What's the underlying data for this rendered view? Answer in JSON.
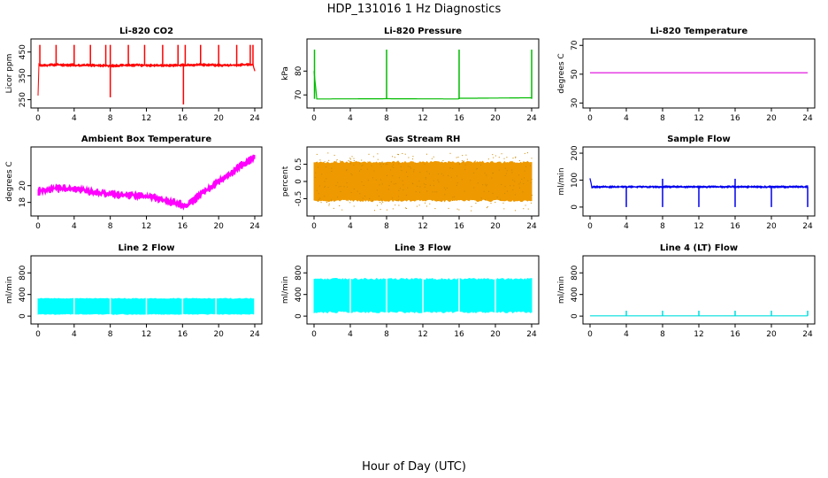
{
  "figure": {
    "title": "HDP_131016  1 Hz Diagnostics",
    "xlabel": "Hour of Day (UTC)"
  },
  "chart_data": [
    {
      "type": "line",
      "title": "Li-820 CO2",
      "ylabel": "Licor ppm",
      "xlim": [
        0,
        24
      ],
      "ylim": [
        230,
        490
      ],
      "yticks": [
        250,
        350,
        450
      ],
      "xticks": [
        0,
        4,
        8,
        12,
        16,
        20,
        24
      ],
      "color": "#ff0000",
      "series": [
        {
          "baseline": 395,
          "noise": 6,
          "x": [
            0,
            0.1,
            0.3,
            2,
            4,
            6,
            8,
            10,
            12,
            14,
            16,
            18,
            20,
            22,
            23.8,
            24
          ],
          "y": [
            270,
            395,
            393,
            396,
            395,
            394,
            392,
            395,
            394,
            393,
            395,
            396,
            394,
            395,
            398,
            370
          ]
        }
      ],
      "spikes_up": [
        0.2,
        2.0,
        4.0,
        5.8,
        7.5,
        8.0,
        10.0,
        11.8,
        13.8,
        15.5,
        16.3,
        18.0,
        20.0,
        22.0,
        23.5,
        23.8
      ],
      "spikes_up_value": 480,
      "spikes_down": [
        8.0,
        16.1
      ],
      "spikes_down_value": [
        260,
        230
      ]
    },
    {
      "type": "line",
      "title": "Li-820 Pressure",
      "ylabel": "kPa",
      "xlim": [
        0,
        24
      ],
      "ylim": [
        66,
        92
      ],
      "yticks": [
        70,
        80
      ],
      "xticks": [
        0,
        4,
        8,
        12,
        16,
        20,
        24
      ],
      "color": "#00bb00",
      "series": [
        {
          "x": [
            0,
            0.3,
            8,
            8.1,
            15.9,
            16.1,
            17.5,
            23.7,
            24
          ],
          "y": [
            80,
            68.3,
            68.4,
            68.4,
            68.3,
            68.6,
            68.6,
            68.8,
            68.8
          ]
        }
      ],
      "spikes_up": [
        0.05,
        8.0,
        16.0,
        24.0
      ],
      "spikes_up_value": 89
    },
    {
      "type": "line",
      "title": "Li-820 Temperature",
      "ylabel": "degrees C",
      "xlim": [
        0,
        24
      ],
      "ylim": [
        29,
        72
      ],
      "yticks": [
        30,
        50,
        70
      ],
      "xticks": [
        0,
        4,
        8,
        12,
        16,
        20,
        24
      ],
      "color": "#dd00dd",
      "series": [
        {
          "x": [
            0,
            24
          ],
          "y": [
            51,
            51
          ]
        }
      ]
    },
    {
      "type": "line",
      "title": "Ambient Box Temperature",
      "ylabel": "degrees C",
      "xlim": [
        0,
        24
      ],
      "ylim": [
        16.8,
        24.2
      ],
      "yticks": [
        18,
        20
      ],
      "xticks": [
        0,
        4,
        8,
        12,
        16,
        20,
        24
      ],
      "color": "#ff00ff",
      "series": [
        {
          "noise": 0.5,
          "x": [
            0,
            2,
            4,
            6,
            8,
            10,
            12,
            14,
            15,
            16,
            16.5,
            17,
            18,
            20,
            22,
            23,
            24
          ],
          "y": [
            19.3,
            19.7,
            19.6,
            19.3,
            19.0,
            18.9,
            18.7,
            18.3,
            18.0,
            17.7,
            17.6,
            18.0,
            19.0,
            20.5,
            22.0,
            22.8,
            23.3
          ]
        }
      ]
    },
    {
      "type": "line",
      "title": "Gas Stream RH",
      "ylabel": "percent",
      "xlim": [
        0,
        24
      ],
      "ylim": [
        -0.9,
        0.9
      ],
      "yticks": [
        -0.5,
        0.0,
        0.5
      ],
      "xticks": [
        0,
        4,
        8,
        12,
        16,
        20,
        24
      ],
      "color": "#ee9900",
      "series": [
        {
          "band": [
            -0.55,
            0.55
          ],
          "outliers": 0.85,
          "x": [
            0,
            24
          ],
          "y": [
            0,
            0
          ]
        }
      ]
    },
    {
      "type": "line",
      "title": "Sample Flow",
      "ylabel": "ml/min",
      "xlim": [
        0,
        24
      ],
      "ylim": [
        -20,
        210
      ],
      "yticks": [
        0,
        100,
        200
      ],
      "xticks": [
        0,
        4,
        8,
        12,
        16,
        20,
        24
      ],
      "color": "#0000ee",
      "series": [
        {
          "noise": 4,
          "x": [
            0,
            0.2,
            24
          ],
          "y": [
            105,
            75,
            75
          ]
        }
      ],
      "spikes_down": [
        4.0,
        8.0,
        12.0,
        16.0,
        20.0,
        24.0
      ],
      "spikes_down_value": [
        0,
        0,
        0,
        0,
        0,
        0
      ],
      "spikes_up": [
        8.0,
        16.0
      ],
      "spikes_up_value": 105
    },
    {
      "type": "area",
      "title": "Line 2 Flow",
      "ylabel": "ml/min",
      "xlim": [
        0,
        24
      ],
      "ylim": [
        -80,
        1050
      ],
      "yticks": [
        0,
        400,
        800
      ],
      "xticks": [
        0,
        4,
        8,
        12,
        16,
        20,
        24
      ],
      "color": "#00ffff",
      "series": [
        {
          "band": [
            40,
            320
          ],
          "x": [
            0,
            24
          ],
          "y": [
            40,
            320
          ]
        }
      ],
      "gaps": [
        4.0,
        8.0,
        12.0,
        16.0,
        19.7,
        24.0
      ]
    },
    {
      "type": "area",
      "title": "Line 3 Flow",
      "ylabel": "ml/min",
      "xlim": [
        0,
        24
      ],
      "ylim": [
        -80,
        1050
      ],
      "yticks": [
        0,
        400,
        800
      ],
      "xticks": [
        0,
        4,
        8,
        12,
        16,
        20,
        24
      ],
      "color": "#00ffff",
      "series": [
        {
          "band": [
            80,
            680
          ],
          "x": [
            0,
            24
          ],
          "y": [
            80,
            680
          ]
        }
      ],
      "gaps": [
        4.0,
        8.0,
        12.0,
        16.0,
        20.0
      ]
    },
    {
      "type": "line",
      "title": "Line 4 (LT) Flow",
      "ylabel": "ml/min",
      "xlim": [
        0,
        24
      ],
      "ylim": [
        -80,
        1050
      ],
      "yticks": [
        0,
        400,
        800
      ],
      "xticks": [
        0,
        4,
        8,
        12,
        16,
        20,
        24
      ],
      "color": "#00dddd",
      "series": [
        {
          "x": [
            0,
            24
          ],
          "y": [
            5,
            5
          ]
        }
      ],
      "spikes_up": [
        4.0,
        8.0,
        12.0,
        16.0,
        20.0,
        24.0
      ],
      "spikes_up_value": 100
    }
  ]
}
